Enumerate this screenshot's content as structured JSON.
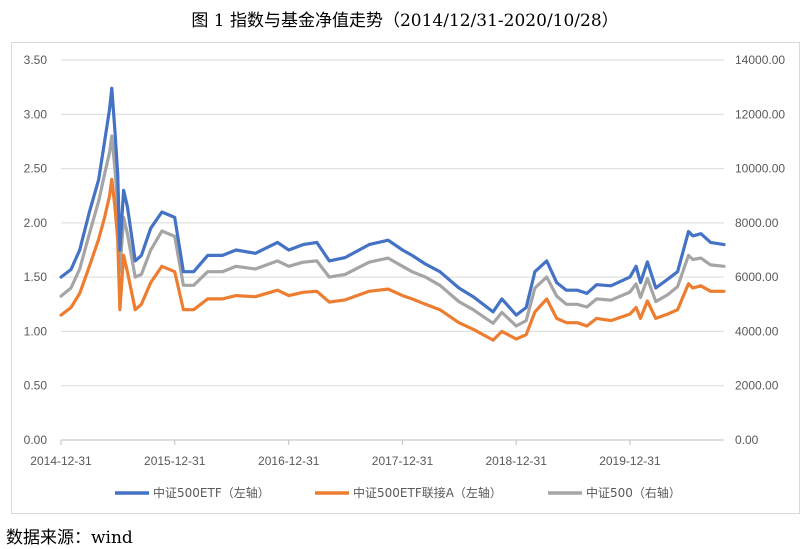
{
  "figure": {
    "title": "图 1  指数与基金净值走势（2014/12/31-2020/10/28）",
    "source": "数据来源：wind"
  },
  "chart_data": {
    "type": "line",
    "x_ticks": [
      "2014-12-31",
      "2015-12-31",
      "2016-12-31",
      "2017-12-31",
      "2018-12-31",
      "2019-12-31"
    ],
    "x_range": [
      "2014-12-31",
      "2020-10-28"
    ],
    "y_left": {
      "ylim": [
        0,
        3.5
      ],
      "ticks": [
        "0.00",
        "0.50",
        "1.00",
        "1.50",
        "2.00",
        "2.50",
        "3.00",
        "3.50"
      ]
    },
    "y_right": {
      "ylim": [
        0,
        14000
      ],
      "ticks": [
        "0.00",
        "2000.00",
        "4000.00",
        "6000.00",
        "8000.00",
        "10000.00",
        "12000.00",
        "14000.00"
      ]
    },
    "grid": true,
    "legend_position": "bottom",
    "series": [
      {
        "name": "中证500ETF（左轴）",
        "axis": "left",
        "color": "#4472C4",
        "points": [
          [
            "2014-12-31",
            1.5
          ],
          [
            "2015-02-01",
            1.57
          ],
          [
            "2015-03-01",
            1.75
          ],
          [
            "2015-04-01",
            2.1
          ],
          [
            "2015-05-01",
            2.4
          ],
          [
            "2015-05-20",
            2.75
          ],
          [
            "2015-06-05",
            3.05
          ],
          [
            "2015-06-12",
            3.24
          ],
          [
            "2015-06-22",
            2.85
          ],
          [
            "2015-07-01",
            2.45
          ],
          [
            "2015-07-08",
            1.75
          ],
          [
            "2015-07-20",
            2.3
          ],
          [
            "2015-08-01",
            2.15
          ],
          [
            "2015-08-26",
            1.65
          ],
          [
            "2015-09-15",
            1.7
          ],
          [
            "2015-10-15",
            1.95
          ],
          [
            "2015-11-20",
            2.1
          ],
          [
            "2015-12-31",
            2.05
          ],
          [
            "2016-01-28",
            1.55
          ],
          [
            "2016-03-01",
            1.55
          ],
          [
            "2016-04-15",
            1.7
          ],
          [
            "2016-06-01",
            1.7
          ],
          [
            "2016-07-15",
            1.75
          ],
          [
            "2016-09-15",
            1.72
          ],
          [
            "2016-11-25",
            1.82
          ],
          [
            "2016-12-31",
            1.75
          ],
          [
            "2017-02-15",
            1.8
          ],
          [
            "2017-03-31",
            1.82
          ],
          [
            "2017-05-10",
            1.65
          ],
          [
            "2017-06-30",
            1.68
          ],
          [
            "2017-09-15",
            1.8
          ],
          [
            "2017-11-15",
            1.84
          ],
          [
            "2017-12-31",
            1.75
          ],
          [
            "2018-01-31",
            1.7
          ],
          [
            "2018-03-15",
            1.62
          ],
          [
            "2018-04-30",
            1.55
          ],
          [
            "2018-06-30",
            1.4
          ],
          [
            "2018-08-15",
            1.32
          ],
          [
            "2018-10-18",
            1.18
          ],
          [
            "2018-11-15",
            1.3
          ],
          [
            "2018-12-31",
            1.15
          ],
          [
            "2019-02-01",
            1.22
          ],
          [
            "2019-03-01",
            1.55
          ],
          [
            "2019-04-08",
            1.65
          ],
          [
            "2019-05-10",
            1.45
          ],
          [
            "2019-06-10",
            1.38
          ],
          [
            "2019-07-15",
            1.38
          ],
          [
            "2019-08-15",
            1.35
          ],
          [
            "2019-09-15",
            1.43
          ],
          [
            "2019-10-31",
            1.42
          ],
          [
            "2019-12-31",
            1.5
          ],
          [
            "2020-01-20",
            1.6
          ],
          [
            "2020-02-03",
            1.45
          ],
          [
            "2020-02-25",
            1.64
          ],
          [
            "2020-03-23",
            1.4
          ],
          [
            "2020-04-30",
            1.48
          ],
          [
            "2020-06-01",
            1.55
          ],
          [
            "2020-07-06",
            1.92
          ],
          [
            "2020-07-20",
            1.88
          ],
          [
            "2020-08-15",
            1.9
          ],
          [
            "2020-09-15",
            1.82
          ],
          [
            "2020-10-28",
            1.8
          ]
        ]
      },
      {
        "name": "中证500ETF联接A（左轴）",
        "axis": "left",
        "color": "#ED7D31",
        "points": [
          [
            "2014-12-31",
            1.15
          ],
          [
            "2015-02-01",
            1.22
          ],
          [
            "2015-03-01",
            1.35
          ],
          [
            "2015-04-01",
            1.6
          ],
          [
            "2015-05-01",
            1.85
          ],
          [
            "2015-05-20",
            2.05
          ],
          [
            "2015-06-05",
            2.25
          ],
          [
            "2015-06-12",
            2.4
          ],
          [
            "2015-06-22",
            2.15
          ],
          [
            "2015-07-01",
            1.85
          ],
          [
            "2015-07-08",
            1.2
          ],
          [
            "2015-07-20",
            1.7
          ],
          [
            "2015-08-01",
            1.55
          ],
          [
            "2015-08-26",
            1.2
          ],
          [
            "2015-09-15",
            1.25
          ],
          [
            "2015-10-15",
            1.45
          ],
          [
            "2015-11-20",
            1.6
          ],
          [
            "2015-12-31",
            1.55
          ],
          [
            "2016-01-28",
            1.2
          ],
          [
            "2016-03-01",
            1.2
          ],
          [
            "2016-04-15",
            1.3
          ],
          [
            "2016-06-01",
            1.3
          ],
          [
            "2016-07-15",
            1.33
          ],
          [
            "2016-09-15",
            1.32
          ],
          [
            "2016-11-25",
            1.38
          ],
          [
            "2016-12-31",
            1.33
          ],
          [
            "2017-02-15",
            1.36
          ],
          [
            "2017-03-31",
            1.37
          ],
          [
            "2017-05-10",
            1.27
          ],
          [
            "2017-06-30",
            1.29
          ],
          [
            "2017-09-15",
            1.37
          ],
          [
            "2017-11-15",
            1.39
          ],
          [
            "2017-12-31",
            1.33
          ],
          [
            "2018-01-31",
            1.3
          ],
          [
            "2018-03-15",
            1.25
          ],
          [
            "2018-04-30",
            1.2
          ],
          [
            "2018-06-30",
            1.08
          ],
          [
            "2018-08-15",
            1.02
          ],
          [
            "2018-10-18",
            0.92
          ],
          [
            "2018-11-15",
            1.0
          ],
          [
            "2018-12-31",
            0.93
          ],
          [
            "2019-02-01",
            0.97
          ],
          [
            "2019-03-01",
            1.18
          ],
          [
            "2019-04-08",
            1.3
          ],
          [
            "2019-05-10",
            1.12
          ],
          [
            "2019-06-10",
            1.08
          ],
          [
            "2019-07-15",
            1.08
          ],
          [
            "2019-08-15",
            1.05
          ],
          [
            "2019-09-15",
            1.12
          ],
          [
            "2019-10-31",
            1.1
          ],
          [
            "2019-12-31",
            1.16
          ],
          [
            "2020-01-20",
            1.22
          ],
          [
            "2020-02-03",
            1.12
          ],
          [
            "2020-02-25",
            1.28
          ],
          [
            "2020-03-23",
            1.12
          ],
          [
            "2020-04-30",
            1.16
          ],
          [
            "2020-06-01",
            1.2
          ],
          [
            "2020-07-06",
            1.44
          ],
          [
            "2020-07-20",
            1.4
          ],
          [
            "2020-08-15",
            1.42
          ],
          [
            "2020-09-15",
            1.37
          ],
          [
            "2020-10-28",
            1.37
          ]
        ]
      },
      {
        "name": "中证500（右轴）",
        "axis": "right",
        "color": "#A5A5A5",
        "points": [
          [
            "2014-12-31",
            5300
          ],
          [
            "2015-02-01",
            5600
          ],
          [
            "2015-03-01",
            6300
          ],
          [
            "2015-04-01",
            7600
          ],
          [
            "2015-05-01",
            8800
          ],
          [
            "2015-05-20",
            9800
          ],
          [
            "2015-06-05",
            10600
          ],
          [
            "2015-06-12",
            11200
          ],
          [
            "2015-06-22",
            10000
          ],
          [
            "2015-07-01",
            8600
          ],
          [
            "2015-07-08",
            6200
          ],
          [
            "2015-07-20",
            8200
          ],
          [
            "2015-08-01",
            7600
          ],
          [
            "2015-08-26",
            6000
          ],
          [
            "2015-09-15",
            6100
          ],
          [
            "2015-10-15",
            7000
          ],
          [
            "2015-11-20",
            7700
          ],
          [
            "2015-12-31",
            7500
          ],
          [
            "2016-01-28",
            5700
          ],
          [
            "2016-03-01",
            5700
          ],
          [
            "2016-04-15",
            6200
          ],
          [
            "2016-06-01",
            6200
          ],
          [
            "2016-07-15",
            6400
          ],
          [
            "2016-09-15",
            6300
          ],
          [
            "2016-11-25",
            6600
          ],
          [
            "2016-12-31",
            6400
          ],
          [
            "2017-02-15",
            6550
          ],
          [
            "2017-03-31",
            6600
          ],
          [
            "2017-05-10",
            6000
          ],
          [
            "2017-06-30",
            6100
          ],
          [
            "2017-09-15",
            6550
          ],
          [
            "2017-11-15",
            6700
          ],
          [
            "2017-12-31",
            6400
          ],
          [
            "2018-01-31",
            6200
          ],
          [
            "2018-03-15",
            6000
          ],
          [
            "2018-04-30",
            5700
          ],
          [
            "2018-06-30",
            5100
          ],
          [
            "2018-08-15",
            4800
          ],
          [
            "2018-10-18",
            4300
          ],
          [
            "2018-11-15",
            4700
          ],
          [
            "2018-12-31",
            4200
          ],
          [
            "2019-02-01",
            4400
          ],
          [
            "2019-03-01",
            5600
          ],
          [
            "2019-04-08",
            6000
          ],
          [
            "2019-05-10",
            5300
          ],
          [
            "2019-06-10",
            5000
          ],
          [
            "2019-07-15",
            5000
          ],
          [
            "2019-08-15",
            4900
          ],
          [
            "2019-09-15",
            5200
          ],
          [
            "2019-10-31",
            5150
          ],
          [
            "2019-12-31",
            5450
          ],
          [
            "2020-01-20",
            5750
          ],
          [
            "2020-02-03",
            5250
          ],
          [
            "2020-02-25",
            5950
          ],
          [
            "2020-03-23",
            5100
          ],
          [
            "2020-04-30",
            5350
          ],
          [
            "2020-06-01",
            5650
          ],
          [
            "2020-07-06",
            6800
          ],
          [
            "2020-07-20",
            6650
          ],
          [
            "2020-08-15",
            6700
          ],
          [
            "2020-09-15",
            6450
          ],
          [
            "2020-10-28",
            6400
          ]
        ]
      }
    ]
  }
}
